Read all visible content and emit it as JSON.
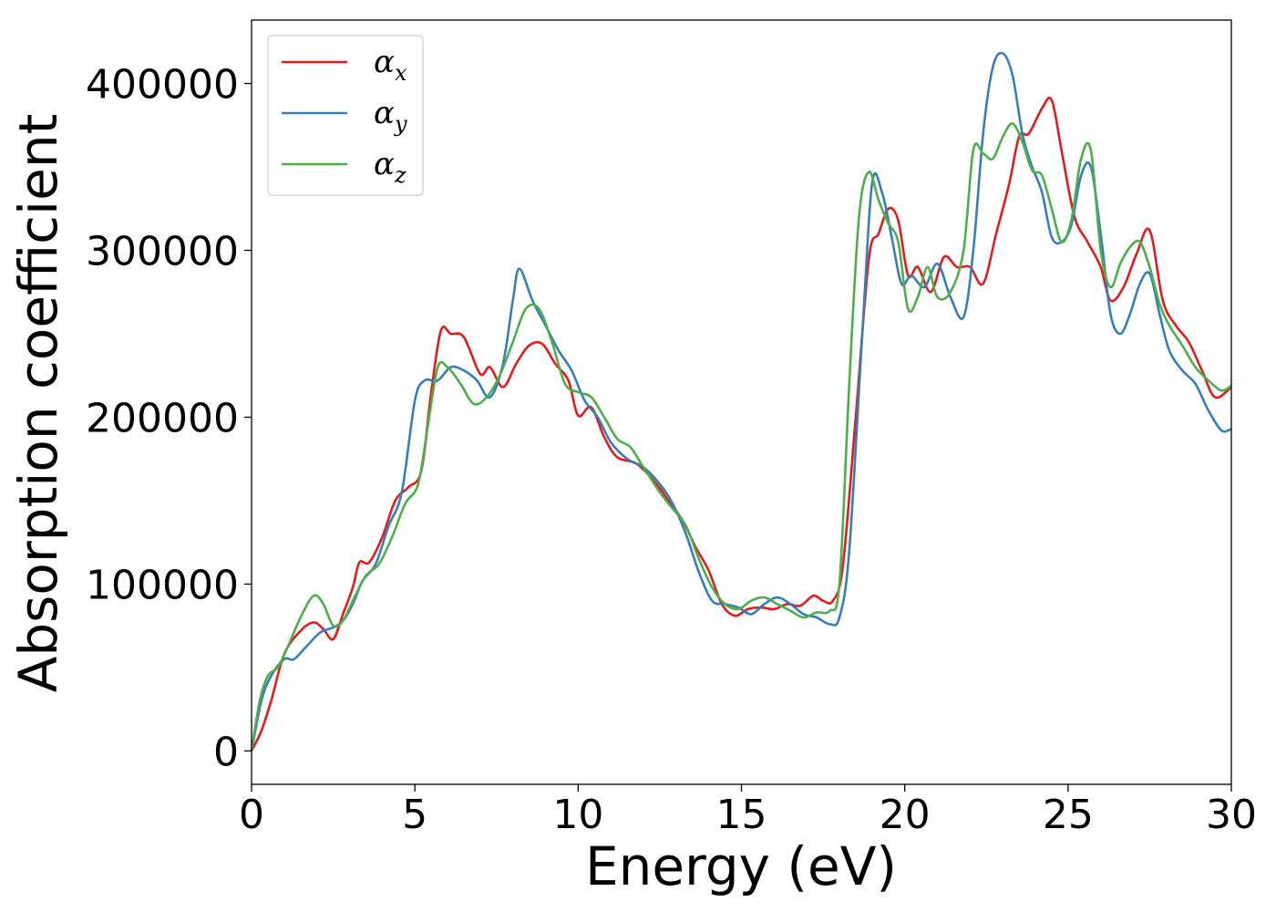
{
  "chart_data": {
    "type": "line",
    "title": "",
    "xlabel": "Energy (eV)",
    "ylabel": "Absorption coefficient",
    "xlim": [
      0,
      30
    ],
    "ylim": [
      -20000,
      438000
    ],
    "xticks": [
      0,
      5,
      10,
      15,
      20,
      25,
      30
    ],
    "yticks": [
      0,
      100000,
      200000,
      300000,
      400000
    ],
    "xtick_labels": [
      "0",
      "5",
      "10",
      "15",
      "20",
      "25",
      "30"
    ],
    "ytick_labels": [
      "0",
      "100000",
      "200000",
      "300000",
      "400000"
    ],
    "grid": false,
    "legend_position": "upper-left",
    "series": [
      {
        "name": "αx",
        "symbol": "α",
        "subscript": "x",
        "color": "#e41a1c",
        "x": [
          0,
          0.3,
          0.6,
          1.0,
          1.5,
          1.9,
          2.2,
          2.5,
          2.8,
          3.1,
          3.3,
          3.6,
          4.0,
          4.4,
          4.8,
          5.2,
          5.5,
          5.8,
          6.1,
          6.5,
          7.0,
          7.3,
          7.7,
          8.1,
          8.5,
          8.9,
          9.3,
          9.7,
          10.0,
          10.4,
          10.8,
          11.2,
          11.8,
          12.4,
          12.8,
          13.2,
          13.6,
          14.0,
          14.4,
          14.8,
          15.2,
          15.6,
          16.0,
          16.4,
          16.8,
          17.2,
          17.5,
          17.8,
          18.1,
          18.5,
          18.9,
          19.2,
          19.5,
          19.8,
          20.1,
          20.4,
          20.8,
          21.2,
          21.6,
          22.0,
          22.4,
          22.8,
          23.2,
          23.5,
          23.8,
          24.2,
          24.5,
          24.8,
          25.2,
          25.6,
          26.0,
          26.3,
          26.7,
          27.1,
          27.5,
          27.9,
          28.3,
          28.7,
          29.1,
          29.5,
          30.0
        ],
        "y": [
          0,
          12000,
          30000,
          58000,
          72000,
          77000,
          73000,
          67000,
          82000,
          98000,
          113000,
          113000,
          128000,
          150000,
          158000,
          168000,
          215000,
          252000,
          250000,
          248000,
          226000,
          230000,
          218000,
          232000,
          243000,
          244000,
          232000,
          222000,
          201000,
          206000,
          188000,
          176000,
          172000,
          160000,
          149000,
          138000,
          122000,
          108000,
          88000,
          81000,
          85000,
          86000,
          85000,
          88000,
          87000,
          93000,
          90000,
          90000,
          110000,
          200000,
          295000,
          310000,
          325000,
          318000,
          285000,
          290000,
          275000,
          296000,
          290000,
          290000,
          280000,
          310000,
          340000,
          368000,
          370000,
          385000,
          390000,
          360000,
          320000,
          305000,
          290000,
          270000,
          278000,
          298000,
          312000,
          270000,
          255000,
          245000,
          228000,
          212000,
          218000
        ]
      },
      {
        "name": "αy",
        "symbol": "α",
        "subscript": "y",
        "color": "#377eb8",
        "x": [
          0,
          0.3,
          0.6,
          1.0,
          1.3,
          1.7,
          2.1,
          2.5,
          2.8,
          3.1,
          3.4,
          3.8,
          4.2,
          4.6,
          5.0,
          5.3,
          5.7,
          6.1,
          6.5,
          6.9,
          7.3,
          7.7,
          8.0,
          8.2,
          8.6,
          9.0,
          9.4,
          9.8,
          10.2,
          10.6,
          11.0,
          11.5,
          12.0,
          12.5,
          12.9,
          13.3,
          13.7,
          14.1,
          14.5,
          14.9,
          15.3,
          15.7,
          16.1,
          16.5,
          16.9,
          17.3,
          17.7,
          18.0,
          18.3,
          18.7,
          19.0,
          19.3,
          19.6,
          19.9,
          20.2,
          20.6,
          21.0,
          21.4,
          21.8,
          22.1,
          22.4,
          22.7,
          23.0,
          23.3,
          23.6,
          23.9,
          24.2,
          24.5,
          24.8,
          25.1,
          25.4,
          25.7,
          26.0,
          26.3,
          26.6,
          26.9,
          27.2,
          27.5,
          27.8,
          28.1,
          28.5,
          28.9,
          29.3,
          29.7,
          30.0
        ],
        "y": [
          0,
          30000,
          45000,
          55000,
          55000,
          63000,
          71000,
          74000,
          78000,
          88000,
          102000,
          112000,
          135000,
          155000,
          210000,
          222000,
          222000,
          230000,
          228000,
          222000,
          212000,
          232000,
          270000,
          289000,
          270000,
          255000,
          240000,
          228000,
          210000,
          200000,
          185000,
          175000,
          170000,
          160000,
          148000,
          130000,
          107000,
          90000,
          88000,
          86000,
          82000,
          88000,
          92000,
          88000,
          82000,
          80000,
          76000,
          80000,
          120000,
          250000,
          340000,
          335000,
          308000,
          280000,
          285000,
          278000,
          292000,
          272000,
          260000,
          300000,
          370000,
          410000,
          418000,
          405000,
          370000,
          350000,
          335000,
          308000,
          305000,
          315000,
          345000,
          350000,
          310000,
          262000,
          250000,
          262000,
          280000,
          286000,
          262000,
          240000,
          228000,
          220000,
          204000,
          192000,
          193000
        ]
      },
      {
        "name": "αz",
        "symbol": "α",
        "subscript": "z",
        "color": "#4daf4a",
        "x": [
          0,
          0.25,
          0.5,
          0.8,
          1.1,
          1.5,
          1.9,
          2.2,
          2.5,
          2.8,
          3.1,
          3.5,
          3.9,
          4.3,
          4.7,
          5.1,
          5.4,
          5.7,
          6.0,
          6.4,
          6.8,
          7.2,
          7.6,
          8.0,
          8.4,
          8.8,
          9.2,
          9.6,
          10.0,
          10.4,
          10.8,
          11.2,
          11.6,
          12.0,
          12.5,
          12.9,
          13.3,
          13.7,
          14.1,
          14.5,
          14.9,
          15.3,
          15.7,
          16.1,
          16.5,
          16.9,
          17.3,
          17.7,
          18.0,
          18.3,
          18.6,
          18.9,
          19.2,
          19.5,
          19.8,
          20.1,
          20.4,
          20.7,
          21.0,
          21.4,
          21.8,
          22.1,
          22.4,
          22.7,
          23.0,
          23.3,
          23.6,
          23.9,
          24.2,
          24.5,
          24.8,
          25.1,
          25.4,
          25.7,
          26.0,
          26.3,
          26.6,
          26.9,
          27.2,
          27.5,
          27.8,
          28.1,
          28.5,
          28.9,
          29.3,
          29.7,
          30.0
        ],
        "y": [
          0,
          30000,
          45000,
          50000,
          62000,
          80000,
          93000,
          88000,
          75000,
          78000,
          90000,
          105000,
          112000,
          128000,
          148000,
          160000,
          195000,
          230000,
          230000,
          220000,
          208000,
          212000,
          225000,
          245000,
          265000,
          265000,
          245000,
          220000,
          215000,
          212000,
          200000,
          187000,
          182000,
          170000,
          155000,
          145000,
          135000,
          115000,
          98000,
          88000,
          85000,
          90000,
          92000,
          88000,
          84000,
          80000,
          83000,
          84000,
          100000,
          220000,
          320000,
          347000,
          330000,
          316000,
          305000,
          265000,
          272000,
          290000,
          272000,
          275000,
          300000,
          360000,
          358000,
          355000,
          368000,
          376000,
          365000,
          348000,
          345000,
          325000,
          305000,
          318000,
          355000,
          360000,
          300000,
          278000,
          292000,
          302000,
          305000,
          290000,
          268000,
          255000,
          243000,
          230000,
          222000,
          216000,
          219000
        ]
      }
    ]
  }
}
